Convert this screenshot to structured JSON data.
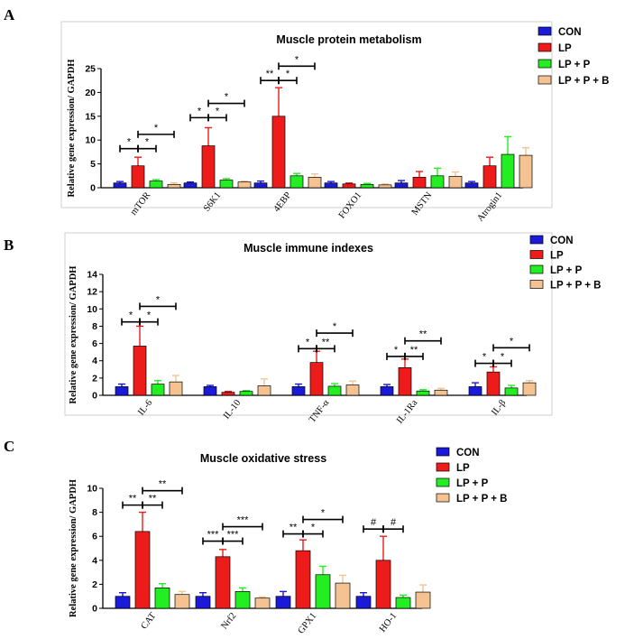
{
  "legend": [
    "CON",
    "LP",
    "LP + P",
    "LP + P + B"
  ],
  "colors": [
    "#1a1ad8",
    "#ee1b1b",
    "#22ee22",
    "#f5c392"
  ],
  "chart_data": [
    {
      "type": "bar",
      "panel": "A",
      "title": "Muscle protein metabolism",
      "ylabel": "Relative gene expression/ GAPDH",
      "ylim": [
        0,
        25
      ],
      "yticks": [
        0,
        5,
        10,
        15,
        20,
        25
      ],
      "categories": [
        "mTOR",
        "S6K1",
        "4EBP",
        "FOXO1",
        "MSTN",
        "Atrogin1"
      ],
      "series": [
        {
          "name": "CON",
          "values": [
            1.0,
            1.0,
            1.0,
            1.0,
            1.0,
            1.0
          ],
          "errors": [
            0.3,
            0.2,
            0.4,
            0.3,
            0.5,
            0.3
          ]
        },
        {
          "name": "LP",
          "values": [
            4.6,
            8.8,
            15.0,
            0.8,
            2.2,
            4.6
          ],
          "errors": [
            1.8,
            3.8,
            6.0,
            0.2,
            1.2,
            1.8
          ]
        },
        {
          "name": "LP + P",
          "values": [
            1.4,
            1.6,
            2.5,
            0.7,
            2.5,
            7.0
          ],
          "errors": [
            0.3,
            0.3,
            0.5,
            0.2,
            1.6,
            3.7
          ]
        },
        {
          "name": "LP + P + B",
          "values": [
            0.7,
            1.2,
            2.2,
            0.6,
            2.4,
            6.8
          ],
          "errors": [
            0.3,
            0.2,
            0.7,
            0.2,
            0.9,
            1.6
          ]
        }
      ],
      "significance": [
        {
          "cat": 0,
          "from": 0,
          "to": 1,
          "label": "*",
          "y": 8.2
        },
        {
          "cat": 0,
          "from": 1,
          "to": 2,
          "label": "*",
          "y": 8.2
        },
        {
          "cat": 0,
          "from": 1,
          "to": 3,
          "label": "*",
          "y": 11.2
        },
        {
          "cat": 1,
          "from": 0,
          "to": 1,
          "label": "*",
          "y": 14.7
        },
        {
          "cat": 1,
          "from": 1,
          "to": 2,
          "label": "*",
          "y": 14.7
        },
        {
          "cat": 1,
          "from": 1,
          "to": 3,
          "label": "*",
          "y": 17.7
        },
        {
          "cat": 2,
          "from": 0,
          "to": 1,
          "label": "**",
          "y": 22.5
        },
        {
          "cat": 2,
          "from": 1,
          "to": 2,
          "label": "*",
          "y": 22.5
        },
        {
          "cat": 2,
          "from": 1,
          "to": 3,
          "label": "*",
          "y": 25.5
        }
      ]
    },
    {
      "type": "bar",
      "panel": "B",
      "title": "Muscle immune indexes",
      "ylabel": "Relative gene expression/ GAPDH",
      "ylim": [
        0,
        14
      ],
      "yticks": [
        0,
        2,
        4,
        6,
        8,
        10,
        12,
        14
      ],
      "categories": [
        "IL-6",
        "IL-10",
        "TNF-α",
        "IL-1Ra",
        "IL-β"
      ],
      "series": [
        {
          "name": "CON",
          "values": [
            1.0,
            1.0,
            1.0,
            1.0,
            1.0
          ],
          "errors": [
            0.3,
            0.15,
            0.3,
            0.25,
            0.45
          ]
        },
        {
          "name": "LP",
          "values": [
            5.7,
            0.35,
            3.8,
            3.2,
            2.7
          ],
          "errors": [
            2.3,
            0.1,
            1.3,
            1.0,
            0.6
          ]
        },
        {
          "name": "LP + P",
          "values": [
            1.3,
            0.45,
            1.05,
            0.5,
            0.85
          ],
          "errors": [
            0.4,
            0.1,
            0.3,
            0.15,
            0.3
          ]
        },
        {
          "name": "LP + P + B",
          "values": [
            1.55,
            1.1,
            1.2,
            0.6,
            1.45
          ],
          "errors": [
            0.75,
            0.8,
            0.45,
            0.2,
            0.25
          ]
        }
      ],
      "significance": [
        {
          "cat": 0,
          "from": 0,
          "to": 1,
          "label": "*",
          "y": 8.5
        },
        {
          "cat": 0,
          "from": 1,
          "to": 2,
          "label": "*",
          "y": 8.5
        },
        {
          "cat": 0,
          "from": 1,
          "to": 3,
          "label": "*",
          "y": 10.3
        },
        {
          "cat": 2,
          "from": 0,
          "to": 1,
          "label": "*",
          "y": 5.4
        },
        {
          "cat": 2,
          "from": 1,
          "to": 2,
          "label": "**",
          "y": 5.4
        },
        {
          "cat": 2,
          "from": 1,
          "to": 3,
          "label": "*",
          "y": 7.2
        },
        {
          "cat": 3,
          "from": 0,
          "to": 1,
          "label": "*",
          "y": 4.5
        },
        {
          "cat": 3,
          "from": 1,
          "to": 2,
          "label": "**",
          "y": 4.5
        },
        {
          "cat": 3,
          "from": 1,
          "to": 3,
          "label": "**",
          "y": 6.3
        },
        {
          "cat": 4,
          "from": 0,
          "to": 1,
          "label": "*",
          "y": 3.7
        },
        {
          "cat": 4,
          "from": 1,
          "to": 2,
          "label": "*",
          "y": 3.7
        },
        {
          "cat": 4,
          "from": 1,
          "to": 3,
          "label": "*",
          "y": 5.5
        }
      ]
    },
    {
      "type": "bar",
      "panel": "C",
      "title": "Muscle oxidative stress",
      "ylabel": "Relative gene expression/ GAPDH",
      "ylim": [
        0,
        10
      ],
      "yticks": [
        0,
        2,
        4,
        6,
        8,
        10
      ],
      "categories": [
        "CAT",
        "Nrf2",
        "GPX1",
        "HO-1"
      ],
      "series": [
        {
          "name": "CON",
          "values": [
            1.0,
            1.0,
            1.0,
            1.0
          ],
          "errors": [
            0.3,
            0.3,
            0.4,
            0.3
          ]
        },
        {
          "name": "LP",
          "values": [
            6.4,
            4.3,
            4.8,
            4.0
          ],
          "errors": [
            1.6,
            0.6,
            0.9,
            2.0
          ]
        },
        {
          "name": "LP + P",
          "values": [
            1.7,
            1.4,
            2.8,
            0.9
          ],
          "errors": [
            0.35,
            0.3,
            0.7,
            0.2
          ]
        },
        {
          "name": "LP + P + B",
          "values": [
            1.15,
            0.85,
            2.1,
            1.35
          ],
          "errors": [
            0.25,
            0.1,
            0.65,
            0.6
          ]
        }
      ],
      "significance": [
        {
          "cat": 0,
          "from": 0,
          "to": 1,
          "label": "**",
          "y": 8.6
        },
        {
          "cat": 0,
          "from": 1,
          "to": 2,
          "label": "**",
          "y": 8.6
        },
        {
          "cat": 0,
          "from": 1,
          "to": 3,
          "label": "**",
          "y": 9.8
        },
        {
          "cat": 1,
          "from": 0,
          "to": 1,
          "label": "***",
          "y": 5.6
        },
        {
          "cat": 1,
          "from": 1,
          "to": 2,
          "label": "***",
          "y": 5.6
        },
        {
          "cat": 1,
          "from": 1,
          "to": 3,
          "label": "***",
          "y": 6.8
        },
        {
          "cat": 2,
          "from": 0,
          "to": 1,
          "label": "**",
          "y": 6.2
        },
        {
          "cat": 2,
          "from": 1,
          "to": 2,
          "label": "*",
          "y": 6.2
        },
        {
          "cat": 2,
          "from": 1,
          "to": 3,
          "label": "*",
          "y": 7.4
        },
        {
          "cat": 3,
          "from": 0,
          "to": 1,
          "label": "#",
          "y": 6.6
        },
        {
          "cat": 3,
          "from": 1,
          "to": 2,
          "label": "#",
          "y": 6.6
        }
      ]
    }
  ]
}
